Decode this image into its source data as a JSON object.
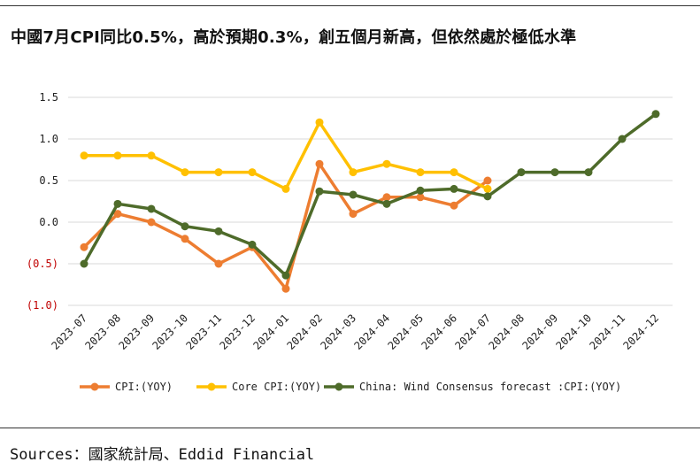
{
  "title": "中國7月CPI同比0.5%，高於預期0.3%，創五個月新高，但依然處於極低水準",
  "source": "Sources：國家統計局、Eddid Financial",
  "colors": {
    "cpi": "#ED7D31",
    "core_cpi": "#FFC000",
    "forecast": "#4E6B2A",
    "negative_label": "#C00000",
    "grid": "#D9D9D9"
  },
  "chart_data": {
    "type": "line",
    "title": "中國7月CPI同比0.5%，高於預期0.3%，創五個月新高，但依然處於極低水準",
    "xlabel": "",
    "ylabel": "",
    "ylim": [
      -1.0,
      1.5
    ],
    "grid": true,
    "legend": "bottom",
    "categories": [
      "2023-07",
      "2023-08",
      "2023-09",
      "2023-10",
      "2023-11",
      "2023-12",
      "2024-01",
      "2024-02",
      "2024-03",
      "2024-04",
      "2024-05",
      "2024-06",
      "2024-07",
      "2024-08",
      "2024-09",
      "2024-10",
      "2024-11",
      "2024-12"
    ],
    "ytick_labels": [
      "1.5",
      "1.0",
      "0.5",
      "0.0",
      "(0.5)",
      "(1.0)"
    ],
    "ytick_values": [
      1.5,
      1.0,
      0.5,
      0.0,
      -0.5,
      -1.0
    ],
    "series": [
      {
        "name": "CPI:(YOY)",
        "color": "#ED7D31",
        "values": [
          -0.3,
          0.1,
          0.0,
          -0.2,
          -0.5,
          -0.3,
          -0.8,
          0.7,
          0.1,
          0.3,
          0.3,
          0.2,
          0.5,
          null,
          null,
          null,
          null,
          null
        ]
      },
      {
        "name": "Core CPI:(YOY)",
        "color": "#FFC000",
        "values": [
          0.8,
          0.8,
          0.8,
          0.6,
          0.6,
          0.6,
          0.4,
          1.2,
          0.6,
          0.7,
          0.6,
          0.6,
          0.4,
          null,
          null,
          null,
          null,
          null
        ]
      },
      {
        "name": "China: Wind Consensus forecast :CPI:(YOY)",
        "color": "#4E6B2A",
        "values": [
          -0.5,
          0.22,
          0.16,
          -0.05,
          -0.11,
          -0.27,
          -0.64,
          0.37,
          0.33,
          0.22,
          0.38,
          0.4,
          0.31,
          0.6,
          0.6,
          0.6,
          1.0,
          1.3
        ]
      }
    ]
  }
}
